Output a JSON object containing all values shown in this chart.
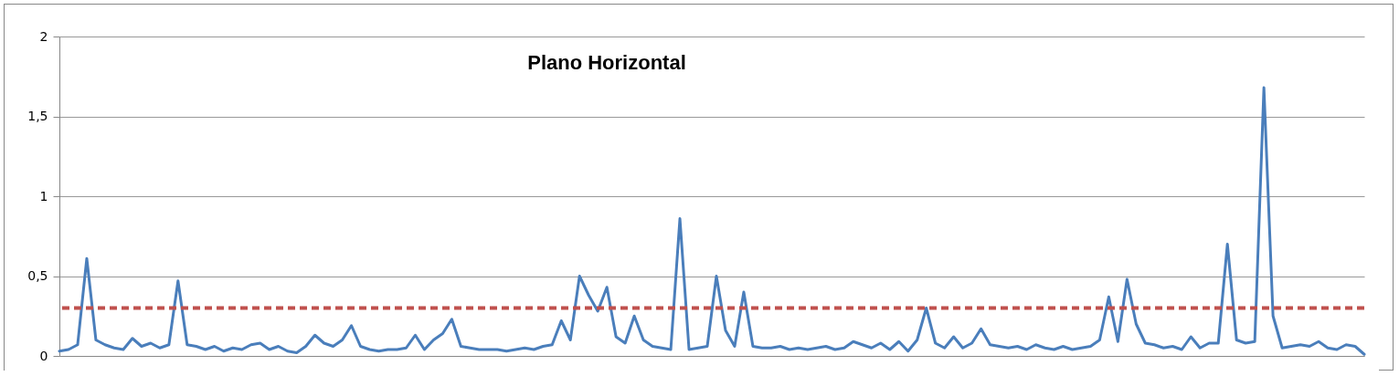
{
  "chart_data": {
    "type": "line",
    "title": "Plano Horizontal",
    "categories": [
      null,
      null,
      null,
      null,
      null,
      null,
      null,
      null,
      null,
      null,
      null,
      null,
      null,
      null,
      null,
      null,
      null,
      null,
      null,
      null,
      null,
      null,
      null,
      null,
      null,
      null,
      null,
      null,
      null,
      null,
      null,
      null,
      null,
      null,
      null,
      null,
      null,
      null,
      null,
      null,
      null,
      null,
      null,
      null,
      null,
      null,
      null,
      null,
      null,
      null,
      null,
      null,
      null,
      null,
      null,
      null,
      null,
      null,
      null,
      null,
      null,
      null,
      null,
      null,
      null,
      null,
      null,
      null,
      null,
      null,
      null,
      null,
      null,
      null,
      null,
      null,
      null,
      null,
      null,
      null,
      null,
      null,
      null,
      null,
      null,
      null,
      null,
      null,
      null,
      null,
      null,
      null,
      null,
      null,
      null,
      null,
      null,
      null,
      null,
      null,
      null,
      null,
      null,
      null,
      null,
      null,
      null,
      null,
      null,
      null,
      null,
      null,
      null,
      null,
      null,
      null,
      null,
      null,
      null,
      null,
      null,
      null,
      null,
      null,
      null,
      null,
      null,
      null,
      null,
      null,
      null,
      null,
      null,
      null,
      null,
      null,
      null,
      null,
      null,
      null,
      null,
      null,
      null,
      null
    ],
    "series": [
      {
        "color": "#4a7ebb",
        "values": [
          0.03,
          0.04,
          0.07,
          0.61,
          0.1,
          0.07,
          0.05,
          0.04,
          0.11,
          0.06,
          0.08,
          0.05,
          0.07,
          0.47,
          0.07,
          0.06,
          0.04,
          0.06,
          0.03,
          0.05,
          0.04,
          0.07,
          0.08,
          0.04,
          0.06,
          0.03,
          0.02,
          0.06,
          0.13,
          0.08,
          0.06,
          0.1,
          0.19,
          0.06,
          0.04,
          0.03,
          0.04,
          0.04,
          0.05,
          0.13,
          0.04,
          0.1,
          0.14,
          0.23,
          0.06,
          0.05,
          0.04,
          0.04,
          0.04,
          0.03,
          0.04,
          0.05,
          0.04,
          0.06,
          0.07,
          0.22,
          0.1,
          0.5,
          0.38,
          0.28,
          0.43,
          0.12,
          0.08,
          0.25,
          0.1,
          0.06,
          0.05,
          0.04,
          0.86,
          0.04,
          0.05,
          0.06,
          0.5,
          0.16,
          0.06,
          0.4,
          0.06,
          0.05,
          0.05,
          0.06,
          0.04,
          0.05,
          0.04,
          0.05,
          0.06,
          0.04,
          0.05,
          0.09,
          0.07,
          0.05,
          0.08,
          0.04,
          0.09,
          0.03,
          0.1,
          0.3,
          0.08,
          0.05,
          0.12,
          0.05,
          0.08,
          0.17,
          0.07,
          0.06,
          0.05,
          0.06,
          0.04,
          0.07,
          0.05,
          0.04,
          0.06,
          0.04,
          0.05,
          0.06,
          0.1,
          0.37,
          0.09,
          0.48,
          0.2,
          0.08,
          0.07,
          0.05,
          0.06,
          0.04,
          0.12,
          0.05,
          0.08,
          0.08,
          0.7,
          0.1,
          0.08,
          0.09,
          1.68,
          0.25,
          0.05,
          0.06,
          0.07,
          0.06,
          0.09,
          0.05,
          0.04,
          0.07,
          0.06,
          0.01
        ]
      }
    ],
    "ylim": [
      0,
      2
    ],
    "yticks": [
      0,
      {
        "value": 0.5,
        "label": "0,5"
      },
      1,
      {
        "value": 1.5,
        "label": "1,5"
      },
      2
    ],
    "grid": "y",
    "marker": "none",
    "line_style": "solid",
    "tick_labels": "y",
    "ref_lines": [
      {
        "axis": "y",
        "value": 0.3,
        "color": "#c0504d",
        "line_style": "dashed"
      }
    ]
  }
}
